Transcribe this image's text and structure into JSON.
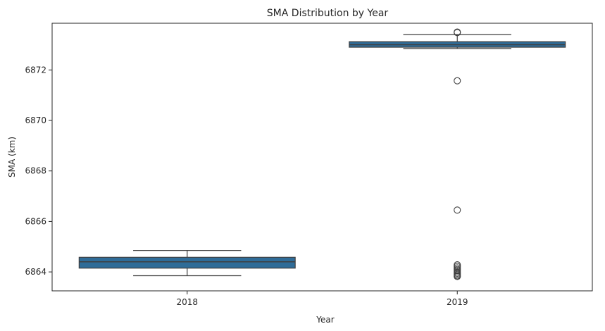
{
  "chart_data": {
    "type": "box",
    "title": "SMA Distribution by Year",
    "xlabel": "Year",
    "ylabel": "SMA (km)",
    "categories": [
      "2018",
      "2019"
    ],
    "ylim": [
      6863.25,
      6873.85
    ],
    "yticks": [
      6864,
      6866,
      6868,
      6870,
      6872
    ],
    "grid": false,
    "box_color": "#2f6c98",
    "boxes": [
      {
        "category": "2018",
        "whisker_low": 6863.85,
        "q1": 6864.15,
        "median": 6864.4,
        "q3": 6864.58,
        "whisker_high": 6864.85,
        "outliers": []
      },
      {
        "category": "2019",
        "whisker_low": 6872.85,
        "q1": 6872.9,
        "median": 6873.0,
        "q3": 6873.12,
        "whisker_high": 6873.4,
        "outliers": [
          6873.5,
          6873.48,
          6871.57,
          6866.45,
          6864.28,
          6864.22,
          6864.16,
          6864.1,
          6864.05,
          6864.0,
          6863.95,
          6863.9,
          6863.85,
          6863.82
        ]
      }
    ]
  }
}
